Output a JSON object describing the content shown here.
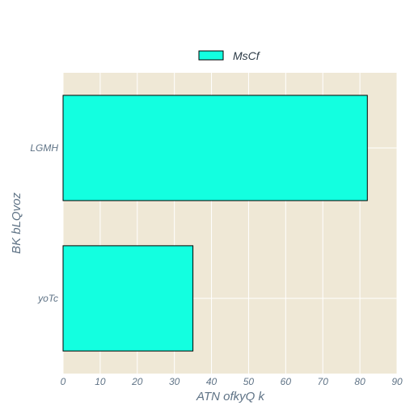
{
  "chart_data": {
    "type": "bar",
    "orientation": "horizontal",
    "categories": [
      "LGMH",
      "yoTc"
    ],
    "series": [
      {
        "name": "MsCf",
        "values": [
          82,
          35
        ],
        "color": "#13ffe0"
      }
    ],
    "xlabel": "ATN  ofkyQ k",
    "ylabel": "BK bLQvoz",
    "xlim": [
      0,
      90
    ],
    "xticks": [
      "0",
      "10",
      "20",
      "30",
      "40",
      "50",
      "60",
      "70",
      "80",
      "90"
    ],
    "grid": true,
    "legend_position": "top-center",
    "plot_background": "#efe8d6",
    "bar_edge_color": "#000000"
  }
}
